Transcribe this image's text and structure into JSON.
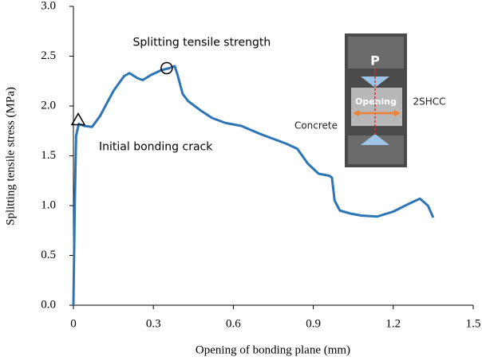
{
  "chart_data": {
    "type": "line",
    "xlabel": "Opening of bonding plane (mm)",
    "ylabel": "Splitting tensile stress (MPa)",
    "x": [
      0,
      0.005,
      0.01,
      0.02,
      0.04,
      0.07,
      0.1,
      0.15,
      0.19,
      0.21,
      0.24,
      0.26,
      0.29,
      0.33,
      0.36,
      0.38,
      0.39,
      0.41,
      0.43,
      0.48,
      0.52,
      0.57,
      0.63,
      0.7,
      0.76,
      0.8,
      0.84,
      0.88,
      0.92,
      0.96,
      0.97,
      0.98,
      1.0,
      1.04,
      1.08,
      1.14,
      1.2,
      1.26,
      1.3,
      1.33,
      1.35
    ],
    "values": [
      0,
      1.0,
      1.7,
      1.82,
      1.8,
      1.79,
      1.9,
      2.15,
      2.3,
      2.33,
      2.28,
      2.26,
      2.31,
      2.36,
      2.38,
      2.4,
      2.32,
      2.12,
      2.05,
      1.95,
      1.88,
      1.83,
      1.8,
      1.72,
      1.66,
      1.62,
      1.57,
      1.42,
      1.32,
      1.3,
      1.28,
      1.05,
      0.95,
      0.92,
      0.9,
      0.89,
      0.94,
      1.02,
      1.07,
      1.0,
      0.88
    ],
    "color": "#2e75b6",
    "xlim": [
      0,
      1.5
    ],
    "xticks": [
      0,
      0.3,
      0.6,
      0.9,
      1.2,
      1.5
    ],
    "ylim": [
      0,
      3.0
    ],
    "yticks": [
      {
        "value": 0,
        "label": "0.0"
      },
      {
        "value": 0.5,
        "label": "0.5"
      },
      {
        "value": 1.0,
        "label": "1.0"
      },
      {
        "value": 1.5,
        "label": "1.5"
      },
      {
        "value": 2.0,
        "label": "2.0"
      },
      {
        "value": 2.5,
        "label": "2.5"
      },
      {
        "value": 3.0,
        "label": "3.0"
      }
    ],
    "annotations": [
      {
        "text": "Splitting tensile strength",
        "x": 0.35,
        "y": 2.38,
        "marker": "circle"
      },
      {
        "text": "Initial bonding crack",
        "x": 0.018,
        "y": 1.86,
        "marker": "triangle"
      }
    ],
    "inset_labels": [
      "P",
      "Opening",
      "Concrete",
      "2SHCC"
    ]
  }
}
